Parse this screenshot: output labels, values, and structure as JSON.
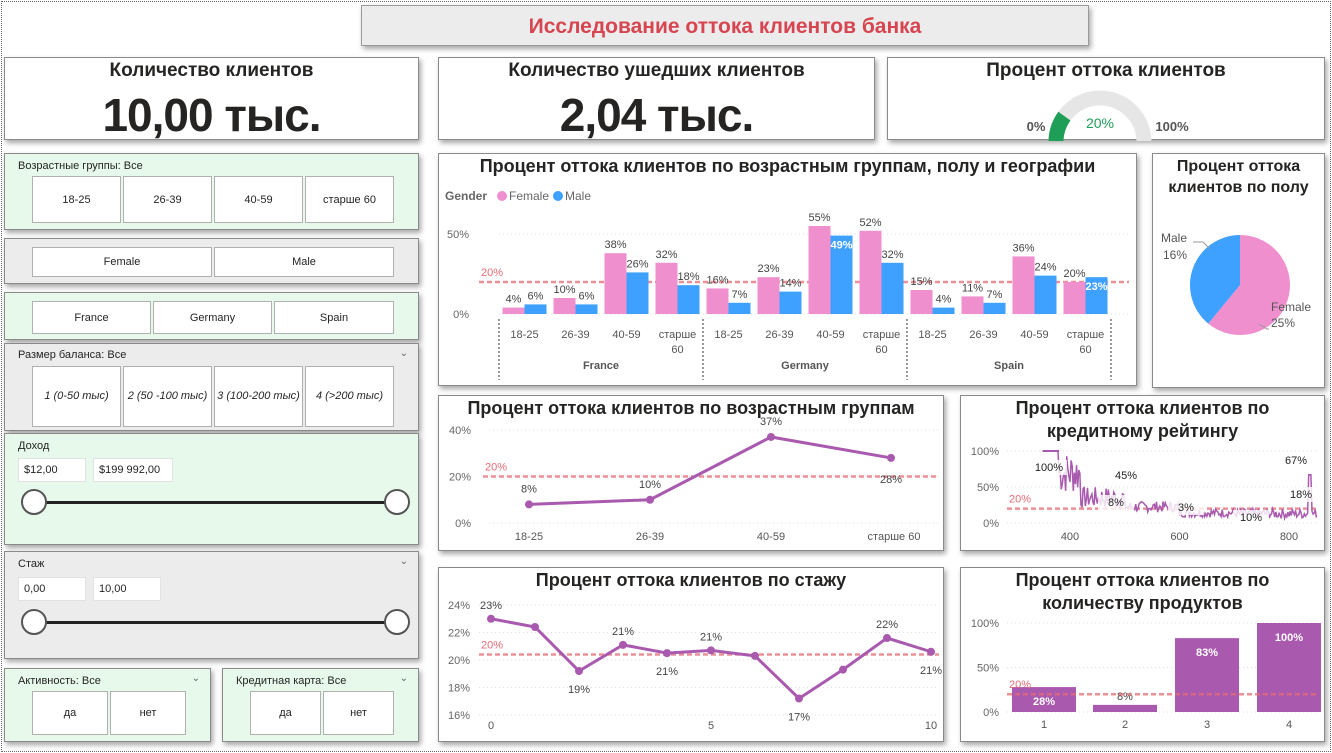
{
  "title": "Исследование оттока клиентов банка",
  "colors": {
    "accent": "#d64550",
    "female": "#f08fce",
    "male": "#3ea0ff",
    "line": "#a95aae",
    "ref": "#e66c74",
    "gauge": "#1e9e57"
  },
  "kpis": {
    "total": {
      "title": "Количество клиентов",
      "value": "10,00 тыс."
    },
    "churned": {
      "title": "Количество ушедших клиентов",
      "value": "2,04 тыс."
    },
    "rate": {
      "title": "Процент оттока клиентов",
      "min": "0%",
      "max": "100%",
      "value_label": "20%",
      "fraction": 0.2
    }
  },
  "slicers": {
    "age": {
      "title": "Возрастные группы: Все",
      "options": [
        "18-25",
        "26-39",
        "40-59",
        "старше 60"
      ]
    },
    "gender": {
      "options": [
        "Female",
        "Male"
      ]
    },
    "geo": {
      "options": [
        "France",
        "Germany",
        "Spain"
      ]
    },
    "balance": {
      "title": "Размер баланса: Все",
      "options": [
        "1 (0-50 тыс)",
        "2 (50 -100 тыс)",
        "3 (100-200 тыс)",
        "4 (>200 тыс)"
      ]
    },
    "income": {
      "title": "Доход",
      "min": "$12,00",
      "max": "$199 992,00"
    },
    "tenure": {
      "title": "Стаж",
      "min": "0,00",
      "max": "10,00"
    },
    "activity": {
      "title": "Активность: Все",
      "options": [
        "да",
        "нет"
      ]
    },
    "card": {
      "title": "Кредитная карта: Все",
      "options": [
        "да",
        "нет"
      ]
    }
  },
  "charts": {
    "geo_title": "Процент оттока клиентов по возрастным группам, полу и географии",
    "gender_title": "Процент оттока клиентов по полу",
    "age_title": "Процент оттока клиентов по возрастным группам",
    "credit_title": "Процент оттока клиентов по кредитному рейтингу",
    "tenure_title": "Процент оттока клиентов по стажу",
    "products_title": "Процент оттока клиентов по количеству продуктов"
  },
  "chart_data": [
    {
      "type": "bar",
      "id": "geo",
      "legend_title": "Gender",
      "legend": [
        "Female",
        "Male"
      ],
      "groups": [
        "France",
        "Germany",
        "Spain"
      ],
      "categories": [
        "18-25",
        "26-39",
        "40-59",
        "старше 60"
      ],
      "yticks": [
        "0%",
        "50%"
      ],
      "ref_label": "20%",
      "ref": 20,
      "ylim": [
        0,
        60
      ],
      "series": [
        {
          "name": "Female",
          "values": [
            [
              4,
              10,
              38,
              32
            ],
            [
              16,
              23,
              55,
              52
            ],
            [
              15,
              11,
              36,
              20
            ]
          ]
        },
        {
          "name": "Male",
          "values": [
            [
              6,
              6,
              26,
              18
            ],
            [
              7,
              14,
              49,
              32
            ],
            [
              4,
              7,
              24,
              23
            ]
          ]
        }
      ]
    },
    {
      "type": "pie",
      "id": "gender",
      "slices": [
        {
          "name": "Male",
          "label": "Male",
          "value_label": "16%",
          "value": 16
        },
        {
          "name": "Female",
          "label": "Female",
          "value_label": "25%",
          "value": 25
        }
      ]
    },
    {
      "type": "line",
      "id": "age",
      "categories": [
        "18-25",
        "26-39",
        "40-59",
        "старше 60"
      ],
      "values": [
        8,
        10,
        37,
        28
      ],
      "labels": [
        "8%",
        "10%",
        "37%",
        "28%"
      ],
      "yticks": [
        "0%",
        "20%",
        "40%"
      ],
      "ref_label": "20%",
      "ref": 20,
      "ylim": [
        0,
        40
      ]
    },
    {
      "type": "line",
      "id": "credit",
      "xticks": [
        "400",
        "600",
        "800"
      ],
      "yticks": [
        "0%",
        "50%",
        "100%"
      ],
      "ref_label": "20%",
      "ref": 20,
      "xlim": [
        350,
        850
      ],
      "ylim": [
        0,
        100
      ],
      "labels": [
        "100%",
        "45%",
        "8%",
        "3%",
        "10%",
        "67%",
        "18%"
      ]
    },
    {
      "type": "line",
      "id": "tenure",
      "x": [
        0,
        1,
        2,
        3,
        4,
        5,
        6,
        7,
        8,
        9,
        10
      ],
      "values": [
        23,
        22.4,
        19.2,
        21.1,
        20.5,
        20.7,
        20.3,
        17.2,
        19.3,
        21.6,
        20.6
      ],
      "labels": [
        "23%",
        "",
        "19%",
        "21%",
        "21%",
        "21%",
        "",
        "17%",
        "",
        "22%",
        "21%"
      ],
      "xticks": [
        "0",
        "5",
        "10"
      ],
      "yticks": [
        "16%",
        "18%",
        "20%",
        "22%",
        "24%"
      ],
      "ref_label": "20%",
      "ref": 20.4,
      "ylim": [
        16,
        24
      ]
    },
    {
      "type": "bar",
      "id": "products",
      "categories": [
        "1",
        "2",
        "3",
        "4"
      ],
      "values": [
        28,
        8,
        83,
        100
      ],
      "labels": [
        "28%",
        "8%",
        "83%",
        "100%"
      ],
      "yticks": [
        "0%",
        "50%",
        "100%"
      ],
      "ref_label": "20%",
      "ref": 20,
      "ylim": [
        0,
        100
      ]
    }
  ]
}
